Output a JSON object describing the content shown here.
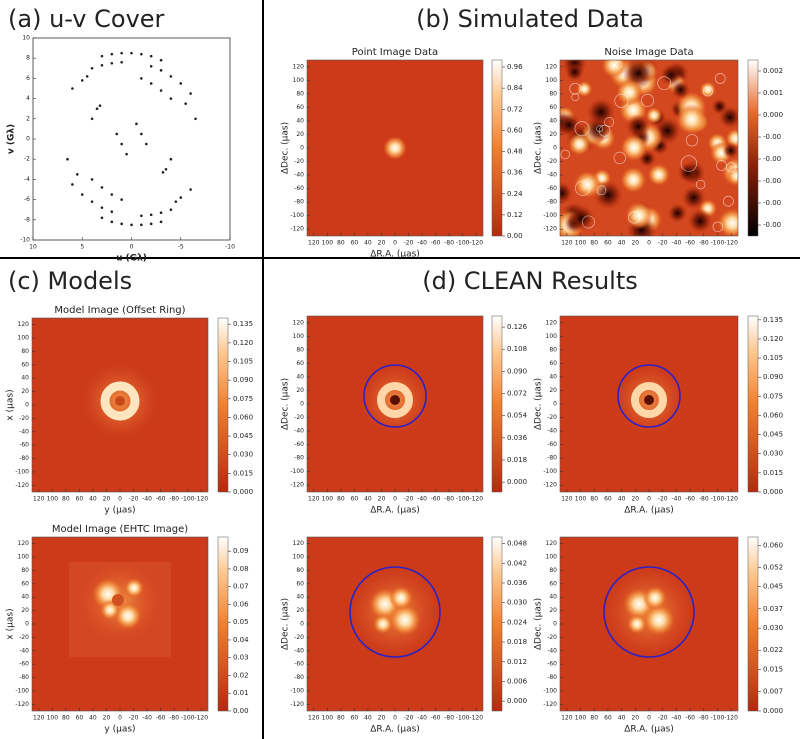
{
  "sections": [
    "(a) u-v Cover",
    "(b) Simulated Data",
    "(c) Models",
    "(d) CLEAN Results"
  ],
  "chart_data": [
    {
      "type": "scatter",
      "xlabel": "u (Gλ)",
      "ylabel": "v (Gλ)",
      "color": "#222222",
      "xlim": [
        10,
        -10
      ],
      "ylim": [
        -10,
        10
      ],
      "xticks": [
        10,
        5,
        0,
        -5,
        -10
      ],
      "yticks": [
        -10,
        -8,
        -6,
        -4,
        -2,
        0,
        2,
        4,
        6,
        8,
        10
      ],
      "x": [
        3,
        2,
        1,
        0,
        -1,
        -2,
        -3,
        4,
        3,
        2,
        1,
        -2,
        -3,
        -4,
        -5,
        -6,
        6,
        5,
        4.5,
        -1,
        -2,
        -3,
        -4,
        4,
        3.5,
        3.2,
        -6.5,
        -5.5,
        -3,
        -2,
        -1,
        0,
        1,
        2,
        3,
        -4,
        -3,
        -2,
        -1,
        2,
        3,
        4,
        5,
        6,
        -6,
        -5,
        -4.5,
        1,
        2,
        3,
        4,
        -4,
        -3.5,
        -3.2,
        6.5,
        5.5,
        1.5,
        1,
        0.5,
        -1.5,
        -1,
        -0.5
      ],
      "y": [
        8.2,
        8.4,
        8.5,
        8.5,
        8.4,
        8.2,
        7.8,
        7,
        7.3,
        7.5,
        7.6,
        7.2,
        6.8,
        6.2,
        5.5,
        4.5,
        5,
        5.8,
        6.2,
        6,
        5.5,
        4.8,
        4,
        2,
        3,
        3.3,
        2,
        3.5,
        -8.2,
        -8.4,
        -8.5,
        -8.5,
        -8.4,
        -8.2,
        -7.8,
        -7,
        -7.3,
        -7.5,
        -7.6,
        -7.2,
        -6.8,
        -6.2,
        -5.5,
        -4.5,
        -5,
        -5.8,
        -6.2,
        -6,
        -5.5,
        -4.8,
        -4,
        -2,
        -3,
        -3.3,
        -2,
        -3.5,
        0.5,
        -0.5,
        -1.5,
        -0.5,
        0.5,
        1.5
      ]
    },
    {
      "type": "heatmap",
      "title": "Point Image Data",
      "xlabel": "ΔR.A. (μas)",
      "ylabel": "ΔDec. (μas)",
      "xlim": [
        130,
        -130
      ],
      "ylim": [
        -130,
        130
      ],
      "xticks": [
        120,
        100,
        80,
        60,
        40,
        20,
        0,
        -20,
        -40,
        -60,
        -80,
        -100,
        -120
      ],
      "yticks": [
        -120,
        -100,
        -80,
        -60,
        -40,
        -20,
        0,
        20,
        40,
        60,
        80,
        100,
        120
      ],
      "clim": [
        0,
        1.0
      ],
      "cticks": [
        {
          "value": 0,
          "label": "0.00"
        },
        0.12,
        0.24,
        0.36,
        0.48,
        {
          "value": 0.6,
          "label": "0.60"
        },
        0.72,
        0.84,
        0.96
      ]
    },
    {
      "type": "heatmap",
      "title": "Noise Image Data",
      "ylabel": "ΔDec. (μas)",
      "xlim": [
        130,
        -130
      ],
      "ylim": [
        -130,
        130
      ],
      "xticks": [
        120,
        100,
        80,
        60,
        40,
        20,
        0,
        -20,
        -40,
        -60,
        -80,
        -100,
        -120
      ],
      "yticks": [
        -120,
        -100,
        -80,
        -60,
        -40,
        -20,
        0,
        20,
        40,
        60,
        80,
        100,
        120
      ],
      "clim": [
        -0.0055,
        0.0025
      ],
      "cticks": [
        {
          "value": -0.005,
          "label": "-0.00"
        },
        {
          "value": -0.004,
          "label": "-0.00"
        },
        {
          "value": -0.003,
          "label": "-0.00"
        },
        {
          "value": -0.002,
          "label": "-0.00"
        },
        {
          "value": -0.001,
          "label": "-0.00"
        },
        {
          "value": 0,
          "label": "0.000"
        },
        0.001,
        0.002
      ]
    },
    {
      "type": "heatmap",
      "title": "Model Image (Offset Ring)",
      "xlabel": "y (μas)",
      "ylabel": "x (μas)",
      "xlim": [
        130,
        -130
      ],
      "ylim": [
        -130,
        130
      ],
      "xticks": [
        120,
        100,
        80,
        60,
        40,
        20,
        0,
        -20,
        -40,
        -60,
        -80,
        -100,
        -120
      ],
      "yticks": [
        -120,
        -100,
        -80,
        -60,
        -40,
        -20,
        0,
        20,
        40,
        60,
        80,
        100,
        120
      ],
      "clim": [
        0,
        0.14
      ],
      "cticks": [
        {
          "value": 0,
          "label": "0.000"
        },
        0.015,
        {
          "value": 0.03,
          "label": "0.030"
        },
        0.045,
        {
          "value": 0.06,
          "label": "0.060"
        },
        0.075,
        {
          "value": 0.09,
          "label": "0.090"
        },
        0.105,
        {
          "value": 0.12,
          "label": "0.120"
        },
        0.135
      ]
    },
    {
      "type": "heatmap",
      "title": "Model Image (EHTC Image)",
      "xlabel": "y (μas)",
      "ylabel": "x (μas)",
      "xlim": [
        130,
        -130
      ],
      "ylim": [
        -130,
        130
      ],
      "xticks": [
        120,
        100,
        80,
        60,
        40,
        20,
        0,
        -20,
        -40,
        -60,
        -80,
        -100,
        -120
      ],
      "yticks": [
        -120,
        -100,
        -80,
        -60,
        -40,
        -20,
        0,
        20,
        40,
        60,
        80,
        100,
        120
      ],
      "clim": [
        0,
        0.098
      ],
      "cticks": [
        {
          "value": 0,
          "label": "0.00"
        },
        0.01,
        0.02,
        0.03,
        0.04,
        0.05,
        0.06,
        0.07,
        0.08,
        0.09
      ]
    },
    {
      "type": "heatmap",
      "xlabel": "ΔR.A. (μas)",
      "ylabel": "ΔDec. (μas)",
      "xlim": [
        130,
        -130
      ],
      "ylim": [
        -130,
        130
      ],
      "xticks": [
        120,
        100,
        80,
        60,
        40,
        20,
        0,
        -20,
        -40,
        -60,
        -80,
        -100,
        -120
      ],
      "yticks": [
        -120,
        -100,
        -80,
        -60,
        -40,
        -20,
        0,
        20,
        40,
        60,
        80,
        100,
        120
      ],
      "clim": [
        -0.008,
        0.135
      ],
      "cticks": [
        {
          "value": 0,
          "label": "0.000"
        },
        0.018,
        0.036,
        0.054,
        0.072,
        {
          "value": 0.09,
          "label": "0.090"
        },
        0.108,
        0.126
      ]
    },
    {
      "type": "heatmap",
      "xlabel": "ΔR.A. (μas)",
      "ylabel": "ΔDec. (μas)",
      "xlim": [
        130,
        -130
      ],
      "ylim": [
        -130,
        130
      ],
      "xticks": [
        120,
        100,
        80,
        60,
        40,
        20,
        0,
        -20,
        -40,
        -60,
        -80,
        -100,
        -120
      ],
      "yticks": [
        -120,
        -100,
        -80,
        -60,
        -40,
        -20,
        0,
        20,
        40,
        60,
        80,
        100,
        120
      ],
      "clim": [
        0,
        0.138
      ],
      "cticks": [
        {
          "value": 0,
          "label": "0.000"
        },
        0.015,
        {
          "value": 0.03,
          "label": "0.030"
        },
        0.045,
        {
          "value": 0.06,
          "label": "0.060"
        },
        0.075,
        {
          "value": 0.09,
          "label": "0.090"
        },
        0.105,
        {
          "value": 0.12,
          "label": "0.120"
        },
        0.135
      ]
    },
    {
      "type": "heatmap",
      "xlabel": "ΔR.A. (μas)",
      "ylabel": "ΔDec. (μas)",
      "xlim": [
        130,
        -130
      ],
      "ylim": [
        -130,
        130
      ],
      "xticks": [
        120,
        100,
        80,
        60,
        40,
        20,
        0,
        -20,
        -40,
        -60,
        -80,
        -100,
        -120
      ],
      "yticks": [
        -120,
        -100,
        -80,
        -60,
        -40,
        -20,
        0,
        20,
        40,
        60,
        80,
        100,
        120
      ],
      "clim": [
        -0.003,
        0.05
      ],
      "cticks": [
        {
          "value": 0,
          "label": "0.000"
        },
        0.006,
        0.012,
        0.018,
        0.024,
        {
          "value": 0.03,
          "label": "0.030"
        },
        0.036,
        0.042,
        0.048
      ]
    },
    {
      "type": "heatmap",
      "xlabel": "ΔR.A. (μas)",
      "ylabel": "ΔDec. (μas)",
      "xlim": [
        130,
        -130
      ],
      "ylim": [
        -130,
        130
      ],
      "xticks": [
        120,
        100,
        80,
        60,
        40,
        20,
        0,
        -20,
        -40,
        -60,
        -80,
        -100,
        -120
      ],
      "yticks": [
        -120,
        -100,
        -80,
        -60,
        -40,
        -20,
        0,
        20,
        40,
        60,
        80,
        100,
        120
      ],
      "clim": [
        0,
        0.063
      ],
      "cticks": [
        {
          "value": 0,
          "label": "0.000"
        },
        0.007,
        0.015,
        0.022,
        {
          "value": 0.03,
          "label": "0.030"
        },
        0.037,
        0.045,
        0.052,
        {
          "value": 0.06,
          "label": "0.060"
        }
      ]
    }
  ]
}
